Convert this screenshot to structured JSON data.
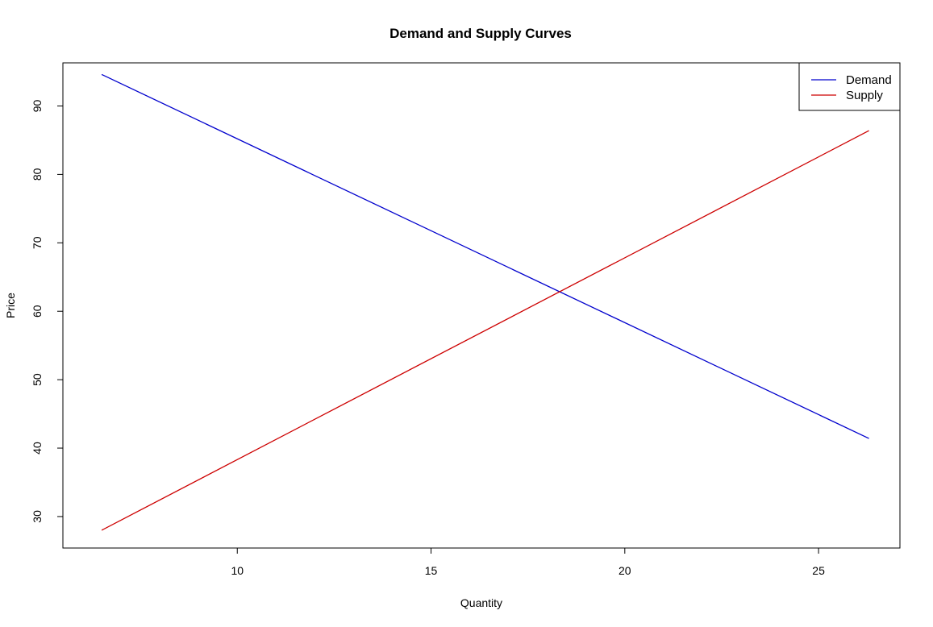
{
  "chart_data": {
    "type": "line",
    "title": "Demand and Supply Curves",
    "xlabel": "Quantity",
    "ylabel": "Price",
    "xlim": [
      5.5,
      27.1
    ],
    "ylim": [
      25.4,
      96.3
    ],
    "x_ticks": [
      10,
      15,
      20,
      25
    ],
    "y_ticks": [
      30,
      40,
      50,
      60,
      70,
      80,
      90
    ],
    "grid": false,
    "legend_position": "top-right",
    "series": [
      {
        "name": "Demand",
        "color": "#0000cd",
        "x": [
          6.5,
          26.3
        ],
        "y": [
          94.6,
          41.4
        ]
      },
      {
        "name": "Supply",
        "color": "#cd0000",
        "x": [
          6.5,
          26.3
        ],
        "y": [
          28.0,
          86.4
        ]
      }
    ]
  }
}
